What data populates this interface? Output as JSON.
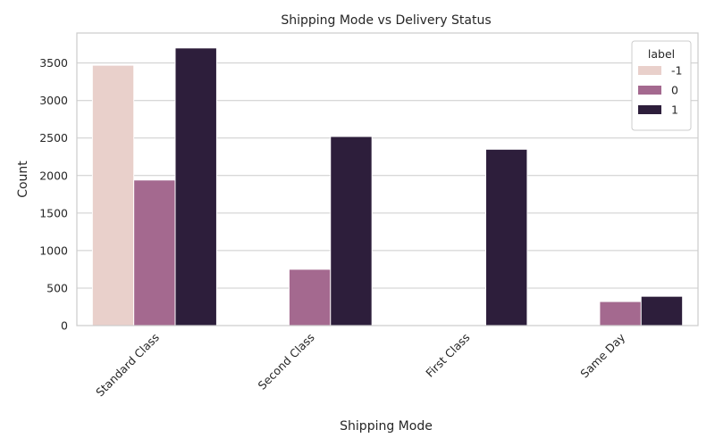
{
  "chart_data": {
    "type": "bar",
    "title": "Shipping Mode vs Delivery Status",
    "xlabel": "Shipping Mode",
    "ylabel": "Count",
    "categories": [
      "Standard Class",
      "Second Class",
      "First Class",
      "Same Day"
    ],
    "series": [
      {
        "name": "-1",
        "color": "#e9d0cb",
        "values": [
          3470,
          0,
          0,
          0
        ]
      },
      {
        "name": "0",
        "color": "#a4698f",
        "values": [
          1940,
          750,
          0,
          320
        ]
      },
      {
        "name": "1",
        "color": "#2d1e3b",
        "values": [
          3700,
          2520,
          2350,
          390
        ]
      }
    ],
    "ylim": [
      0,
      3900
    ],
    "yticks": [
      0,
      500,
      1000,
      1500,
      2000,
      2500,
      3000,
      3500
    ],
    "ytick_labels": [
      "0",
      "500",
      "1000",
      "1500",
      "2000",
      "2500",
      "3000",
      "3500"
    ],
    "legend": {
      "title": "label",
      "position": "top-right"
    },
    "grid": "horizontal",
    "x_tick_rotation": 45
  }
}
